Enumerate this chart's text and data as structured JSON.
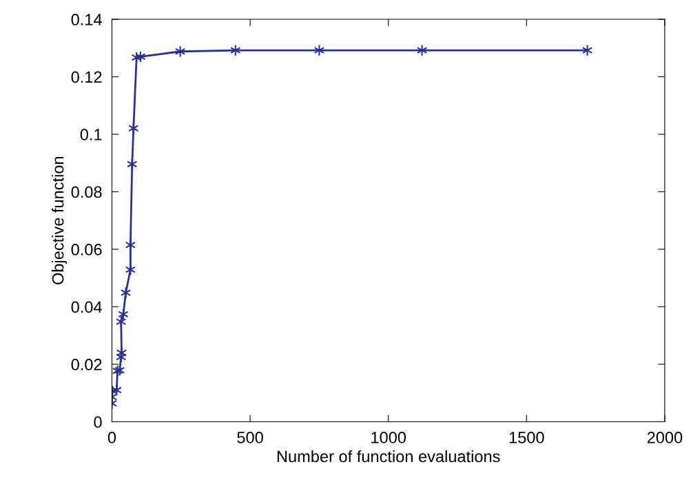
{
  "chart_data": {
    "type": "line",
    "xlabel": "Number of function evaluations",
    "ylabel": "Objective function",
    "xlim": [
      0,
      2000
    ],
    "xticks": [
      0,
      500,
      1000,
      1500,
      2000
    ],
    "ylim": [
      0,
      0.14
    ],
    "yticks": [
      0,
      0.02,
      0.04,
      0.06,
      0.08,
      0.1,
      0.12,
      0.14
    ],
    "grid": false,
    "legend": false,
    "marker": "cross",
    "line_style": "solid",
    "series": [
      {
        "color": "#2b2f9a",
        "x": [
          0,
          0,
          2,
          17,
          20,
          28,
          33,
          35,
          33,
          41,
          50,
          67,
          67,
          73,
          78,
          89,
          103,
          247,
          447,
          750,
          1122,
          1720
        ],
        "values": [
          0.0064,
          0.0086,
          0.0107,
          0.011,
          0.0177,
          0.0179,
          0.0225,
          0.024,
          0.0348,
          0.0374,
          0.0449,
          0.0529,
          0.0615,
          0.0896,
          0.1021,
          0.1267,
          0.127,
          0.1288,
          0.1292,
          0.1292,
          0.1292,
          0.1292
        ]
      }
    ]
  }
}
